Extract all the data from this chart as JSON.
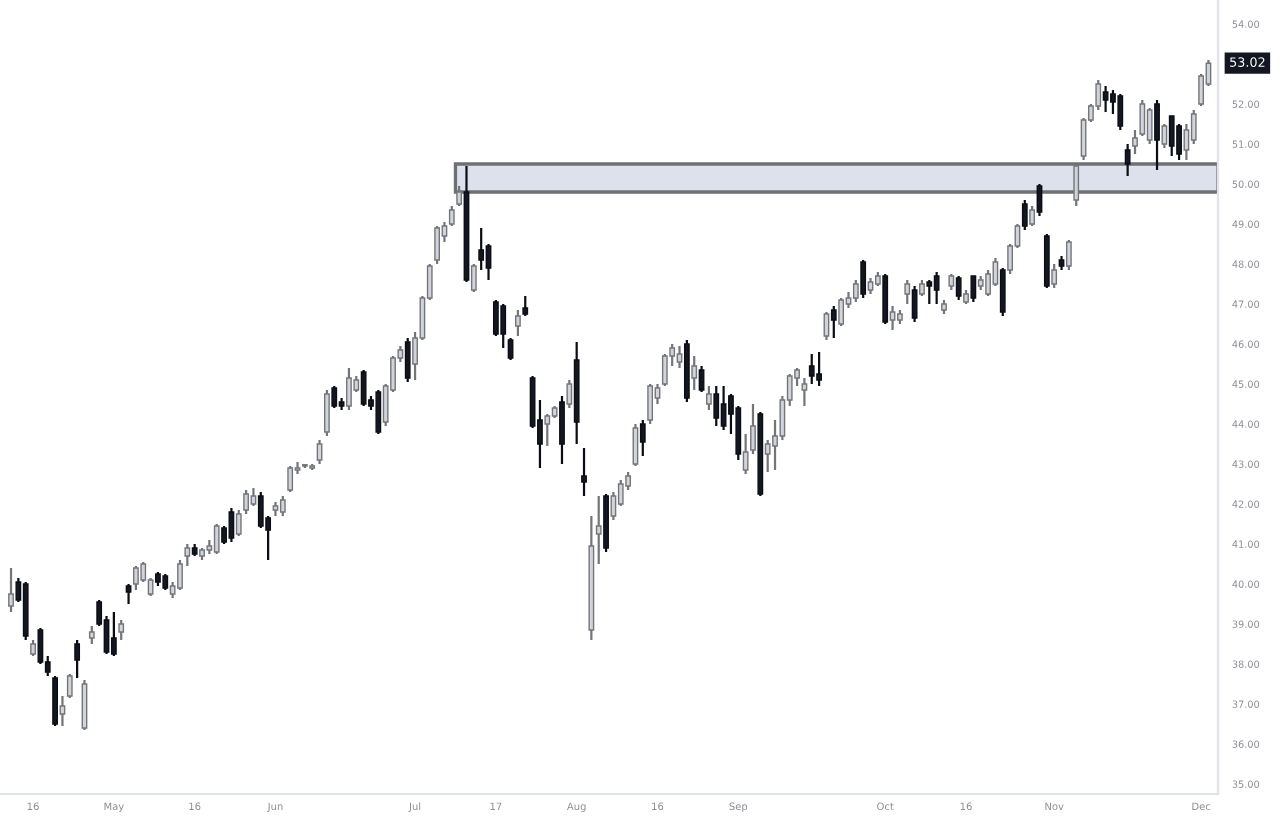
{
  "chart_data": {
    "type": "candlestick",
    "categories": [
      null,
      null,
      null,
      "16",
      null,
      null,
      null,
      null,
      null,
      null,
      null,
      null,
      null,
      null,
      "May",
      null,
      null,
      null,
      null,
      null,
      null,
      null,
      null,
      null,
      null,
      "16",
      null,
      null,
      null,
      null,
      null,
      null,
      null,
      null,
      null,
      null,
      "Jun",
      null,
      null,
      null,
      null,
      null,
      null,
      null,
      null,
      null,
      null,
      null,
      null,
      null,
      null,
      null,
      null,
      null,
      null,
      "Jul",
      null,
      null,
      null,
      null,
      null,
      null,
      null,
      null,
      null,
      null,
      "17",
      null,
      null,
      null,
      null,
      null,
      null,
      null,
      null,
      null,
      null,
      "Aug",
      null,
      null,
      null,
      null,
      null,
      null,
      null,
      null,
      null,
      null,
      "16",
      null,
      null,
      null,
      null,
      null,
      null,
      null,
      null,
      null,
      null,
      "Sep",
      null,
      null,
      null,
      null,
      null,
      null,
      null,
      null,
      null,
      null,
      null,
      null,
      null,
      null,
      null,
      null,
      null,
      null,
      null,
      "Oct",
      null,
      null,
      null,
      null,
      null,
      null,
      null,
      null,
      null,
      null,
      "16",
      null,
      null,
      null,
      null,
      null,
      null,
      null,
      null,
      null,
      null,
      null,
      "Nov",
      null,
      null,
      null,
      null,
      null,
      null,
      null,
      null,
      null,
      null,
      null,
      null,
      null,
      null,
      null,
      null,
      null,
      null,
      null,
      "Dec",
      null
    ],
    "ohlc": [
      [
        39.45,
        40.4,
        39.3,
        39.75
      ],
      [
        40.05,
        40.15,
        39.55,
        39.6
      ],
      [
        40.0,
        40.05,
        38.6,
        38.7
      ],
      [
        38.25,
        38.6,
        38.2,
        38.5
      ],
      [
        38.85,
        38.9,
        38.0,
        38.05
      ],
      [
        38.05,
        38.2,
        37.7,
        37.8
      ],
      [
        37.65,
        37.7,
        36.45,
        36.5
      ],
      [
        36.75,
        37.2,
        36.45,
        36.95
      ],
      [
        37.2,
        37.75,
        37.15,
        37.7
      ],
      [
        38.5,
        38.6,
        37.65,
        38.1
      ],
      [
        36.4,
        37.6,
        36.35,
        37.5
      ],
      [
        38.65,
        38.95,
        38.5,
        38.8
      ],
      [
        39.55,
        39.6,
        38.95,
        39.0
      ],
      [
        39.1,
        39.2,
        38.25,
        38.3
      ],
      [
        38.65,
        39.3,
        38.2,
        38.25
      ],
      [
        38.8,
        39.1,
        38.6,
        39.0
      ],
      [
        39.95,
        40.0,
        39.5,
        39.8
      ],
      [
        40.0,
        40.45,
        39.85,
        40.4
      ],
      [
        40.1,
        40.55,
        40.05,
        40.5
      ],
      [
        39.75,
        40.15,
        39.7,
        40.1
      ],
      [
        40.25,
        40.3,
        39.95,
        40.05
      ],
      [
        40.2,
        40.25,
        39.85,
        39.9
      ],
      [
        39.75,
        40.05,
        39.65,
        39.95
      ],
      [
        39.9,
        40.6,
        39.85,
        40.5
      ],
      [
        40.7,
        41.0,
        40.45,
        40.9
      ],
      [
        40.9,
        41.0,
        40.7,
        40.75
      ],
      [
        40.7,
        40.9,
        40.6,
        40.85
      ],
      [
        40.85,
        41.1,
        40.75,
        40.95
      ],
      [
        40.8,
        41.5,
        40.75,
        41.45
      ],
      [
        41.4,
        41.45,
        41.0,
        41.05
      ],
      [
        41.8,
        41.9,
        41.05,
        41.15
      ],
      [
        41.25,
        41.85,
        41.2,
        41.75
      ],
      [
        41.85,
        42.35,
        41.75,
        42.25
      ],
      [
        42.0,
        42.4,
        41.95,
        42.2
      ],
      [
        42.2,
        42.3,
        41.4,
        41.45
      ],
      [
        41.65,
        41.7,
        40.6,
        41.35
      ],
      [
        41.85,
        42.05,
        41.7,
        41.95
      ],
      [
        41.8,
        42.2,
        41.7,
        42.1
      ],
      [
        42.35,
        42.95,
        42.3,
        42.9
      ],
      [
        42.85,
        43.05,
        42.75,
        42.9
      ],
      [
        42.95,
        43.0,
        42.9,
        42.95
      ],
      [
        42.9,
        43.0,
        42.85,
        42.95
      ],
      [
        43.1,
        43.6,
        43.0,
        43.5
      ],
      [
        43.8,
        44.85,
        43.7,
        44.75
      ],
      [
        44.9,
        44.95,
        44.4,
        44.45
      ],
      [
        44.55,
        44.65,
        44.35,
        44.45
      ],
      [
        44.45,
        45.4,
        44.35,
        45.15
      ],
      [
        44.85,
        45.2,
        44.8,
        45.1
      ],
      [
        45.3,
        45.35,
        44.45,
        44.5
      ],
      [
        44.6,
        44.7,
        44.35,
        44.45
      ],
      [
        44.8,
        44.85,
        43.75,
        43.8
      ],
      [
        44.05,
        45.0,
        43.95,
        44.95
      ],
      [
        44.85,
        45.7,
        44.8,
        45.65
      ],
      [
        45.65,
        45.95,
        45.55,
        45.85
      ],
      [
        46.05,
        46.15,
        45.05,
        45.15
      ],
      [
        45.5,
        46.3,
        45.1,
        46.15
      ],
      [
        46.15,
        47.2,
        46.1,
        47.15
      ],
      [
        47.15,
        48.0,
        47.1,
        47.95
      ],
      [
        48.1,
        48.95,
        48.0,
        48.9
      ],
      [
        48.7,
        49.05,
        48.55,
        48.95
      ],
      [
        49.0,
        49.45,
        48.95,
        49.35
      ],
      [
        49.5,
        49.95,
        49.45,
        49.8
      ],
      [
        49.8,
        50.45,
        47.55,
        47.6
      ],
      [
        47.35,
        48.0,
        47.3,
        47.95
      ],
      [
        48.35,
        48.9,
        47.85,
        48.1
      ],
      [
        48.45,
        48.5,
        47.6,
        47.9
      ],
      [
        47.05,
        47.1,
        46.2,
        46.25
      ],
      [
        46.95,
        47.0,
        45.9,
        46.25
      ],
      [
        46.1,
        46.15,
        45.6,
        45.65
      ],
      [
        46.45,
        46.85,
        46.2,
        46.7
      ],
      [
        46.9,
        47.2,
        46.7,
        46.75
      ],
      [
        45.15,
        45.2,
        43.9,
        43.95
      ],
      [
        44.1,
        44.6,
        42.9,
        43.5
      ],
      [
        44.0,
        44.25,
        43.45,
        44.2
      ],
      [
        44.2,
        44.45,
        44.15,
        44.4
      ],
      [
        44.55,
        44.7,
        43.0,
        43.5
      ],
      [
        44.5,
        45.1,
        44.4,
        45.0
      ],
      [
        45.6,
        46.05,
        43.5,
        44.05
      ],
      [
        42.7,
        43.4,
        42.2,
        42.55
      ],
      [
        38.85,
        41.7,
        38.6,
        40.95
      ],
      [
        41.25,
        42.2,
        40.5,
        41.45
      ],
      [
        42.2,
        42.25,
        40.8,
        40.9
      ],
      [
        41.7,
        42.3,
        41.6,
        42.2
      ],
      [
        42.0,
        42.6,
        41.95,
        42.5
      ],
      [
        42.45,
        42.8,
        42.35,
        42.7
      ],
      [
        43.0,
        44.0,
        42.95,
        43.9
      ],
      [
        44.0,
        44.1,
        43.2,
        43.55
      ],
      [
        44.1,
        45.0,
        44.0,
        44.95
      ],
      [
        44.65,
        45.0,
        44.5,
        44.9
      ],
      [
        45.0,
        45.75,
        44.95,
        45.7
      ],
      [
        45.7,
        46.0,
        45.45,
        45.9
      ],
      [
        45.55,
        45.95,
        45.4,
        45.75
      ],
      [
        46.0,
        46.1,
        44.55,
        44.65
      ],
      [
        45.15,
        45.7,
        44.85,
        45.45
      ],
      [
        45.35,
        45.45,
        44.8,
        44.85
      ],
      [
        44.5,
        44.95,
        44.35,
        44.75
      ],
      [
        44.75,
        44.95,
        43.95,
        44.15
      ],
      [
        44.5,
        44.95,
        43.85,
        43.95
      ],
      [
        44.7,
        44.75,
        43.75,
        44.25
      ],
      [
        44.4,
        44.45,
        43.1,
        43.25
      ],
      [
        42.85,
        43.75,
        42.75,
        43.3
      ],
      [
        43.35,
        44.5,
        43.25,
        43.95
      ],
      [
        44.25,
        44.3,
        42.2,
        42.25
      ],
      [
        43.25,
        43.6,
        42.8,
        43.5
      ],
      [
        43.45,
        44.1,
        42.85,
        43.7
      ],
      [
        43.7,
        44.7,
        43.6,
        44.6
      ],
      [
        44.6,
        45.25,
        44.45,
        45.2
      ],
      [
        45.15,
        45.4,
        44.95,
        45.35
      ],
      [
        44.85,
        45.15,
        44.45,
        45.0
      ],
      [
        45.45,
        45.75,
        45.0,
        45.2
      ],
      [
        45.25,
        45.8,
        44.95,
        45.1
      ],
      [
        46.2,
        46.8,
        46.1,
        46.75
      ],
      [
        46.85,
        46.95,
        46.15,
        46.6
      ],
      [
        46.5,
        47.15,
        46.45,
        47.1
      ],
      [
        47.0,
        47.3,
        46.9,
        47.15
      ],
      [
        47.15,
        47.6,
        47.05,
        47.5
      ],
      [
        48.05,
        48.1,
        47.15,
        47.25
      ],
      [
        47.35,
        47.65,
        47.25,
        47.55
      ],
      [
        47.5,
        47.8,
        47.45,
        47.7
      ],
      [
        47.7,
        47.75,
        46.5,
        46.55
      ],
      [
        46.6,
        46.95,
        46.35,
        46.8
      ],
      [
        46.6,
        46.85,
        46.5,
        46.75
      ],
      [
        47.25,
        47.6,
        47.0,
        47.5
      ],
      [
        47.35,
        47.45,
        46.55,
        46.65
      ],
      [
        47.25,
        47.6,
        47.2,
        47.5
      ],
      [
        47.55,
        47.6,
        47.0,
        47.45
      ],
      [
        47.7,
        47.8,
        47.0,
        47.35
      ],
      [
        46.85,
        47.1,
        46.75,
        47.0
      ],
      [
        47.45,
        47.75,
        47.35,
        47.7
      ],
      [
        47.65,
        47.7,
        47.1,
        47.2
      ],
      [
        47.05,
        47.35,
        47.0,
        47.25
      ],
      [
        47.7,
        47.7,
        47.05,
        47.15
      ],
      [
        47.45,
        47.7,
        47.35,
        47.6
      ],
      [
        47.25,
        47.85,
        47.2,
        47.75
      ],
      [
        47.5,
        48.15,
        47.45,
        48.05
      ],
      [
        47.85,
        47.9,
        46.7,
        46.8
      ],
      [
        47.85,
        48.5,
        47.75,
        48.45
      ],
      [
        48.45,
        49.0,
        48.4,
        48.95
      ],
      [
        49.5,
        49.6,
        48.85,
        48.95
      ],
      [
        49.0,
        49.45,
        48.95,
        49.35
      ],
      [
        49.95,
        50.0,
        49.2,
        49.3
      ],
      [
        48.7,
        48.75,
        47.4,
        47.45
      ],
      [
        47.5,
        48.0,
        47.4,
        47.85
      ],
      [
        48.1,
        48.2,
        47.85,
        47.95
      ],
      [
        47.95,
        48.6,
        47.85,
        48.55
      ],
      [
        49.6,
        50.5,
        49.45,
        50.45
      ],
      [
        50.7,
        51.65,
        50.6,
        51.6
      ],
      [
        51.6,
        52.0,
        51.55,
        51.95
      ],
      [
        51.95,
        52.6,
        51.85,
        52.5
      ],
      [
        52.3,
        52.45,
        51.8,
        52.1
      ],
      [
        52.25,
        52.35,
        51.75,
        52.05
      ],
      [
        52.2,
        52.25,
        51.35,
        51.45
      ],
      [
        50.85,
        51.0,
        50.2,
        50.5
      ],
      [
        50.95,
        51.35,
        50.75,
        51.15
      ],
      [
        51.25,
        52.1,
        51.2,
        52.0
      ],
      [
        51.1,
        51.9,
        51.0,
        51.85
      ],
      [
        52.0,
        52.1,
        50.35,
        51.1
      ],
      [
        51.0,
        51.5,
        50.9,
        51.45
      ],
      [
        51.7,
        51.7,
        50.7,
        50.95
      ],
      [
        51.45,
        51.5,
        50.6,
        50.75
      ],
      [
        50.85,
        51.5,
        50.6,
        51.35
      ],
      [
        51.1,
        51.85,
        51.0,
        51.75
      ],
      [
        52.0,
        52.75,
        51.95,
        52.7
      ],
      [
        52.5,
        53.1,
        52.45,
        53.02
      ]
    ],
    "colors": [
      "#d1d4dc",
      "#131722",
      "#131722",
      "#d1d4dc",
      "#131722",
      "#131722",
      "#131722",
      "#d1d4dc",
      "#d1d4dc",
      "#131722",
      "#d1d4dc",
      "#d1d4dc",
      "#131722",
      "#131722",
      "#131722",
      "#d1d4dc",
      "#131722",
      "#d1d4dc",
      "#d1d4dc",
      "#d1d4dc",
      "#131722",
      "#131722",
      "#d1d4dc",
      "#d1d4dc",
      "#d1d4dc",
      "#131722",
      "#d1d4dc",
      "#d1d4dc",
      "#d1d4dc",
      "#131722",
      "#131722",
      "#d1d4dc",
      "#d1d4dc",
      "#d1d4dc",
      "#131722",
      "#131722",
      "#d1d4dc",
      "#d1d4dc",
      "#d1d4dc",
      "#d1d4dc",
      "#d1d4dc",
      "#d1d4dc",
      "#d1d4dc",
      "#d1d4dc",
      "#131722",
      "#131722",
      "#d1d4dc",
      "#d1d4dc",
      "#131722",
      "#131722",
      "#131722",
      "#d1d4dc",
      "#d1d4dc",
      "#d1d4dc",
      "#131722",
      "#d1d4dc",
      "#d1d4dc",
      "#d1d4dc",
      "#d1d4dc",
      "#d1d4dc",
      "#d1d4dc",
      "#d1d4dc",
      "#131722",
      "#d1d4dc",
      "#131722",
      "#131722",
      "#131722",
      "#131722",
      "#131722",
      "#d1d4dc",
      "#131722",
      "#131722",
      "#131722",
      "#d1d4dc",
      "#d1d4dc",
      "#131722",
      "#d1d4dc",
      "#131722",
      "#131722",
      "#d1d4dc",
      "#d1d4dc",
      "#131722",
      "#d1d4dc",
      "#d1d4dc",
      "#d1d4dc",
      "#d1d4dc",
      "#131722",
      "#d1d4dc",
      "#d1d4dc",
      "#d1d4dc",
      "#d1d4dc",
      "#d1d4dc",
      "#131722",
      "#d1d4dc",
      "#131722",
      "#d1d4dc",
      "#131722",
      "#131722",
      "#131722",
      "#131722",
      "#d1d4dc",
      "#d1d4dc",
      "#131722",
      "#d1d4dc",
      "#d1d4dc",
      "#d1d4dc",
      "#d1d4dc",
      "#d1d4dc",
      "#d1d4dc",
      "#131722",
      "#131722",
      "#d1d4dc",
      "#131722",
      "#d1d4dc",
      "#d1d4dc",
      "#d1d4dc",
      "#131722",
      "#d1d4dc",
      "#d1d4dc",
      "#131722",
      "#d1d4dc",
      "#d1d4dc",
      "#d1d4dc",
      "#131722",
      "#d1d4dc",
      "#131722",
      "#131722",
      "#d1d4dc",
      "#d1d4dc",
      "#131722",
      "#d1d4dc",
      "#131722",
      "#d1d4dc",
      "#d1d4dc",
      "#d1d4dc",
      "#131722",
      "#d1d4dc",
      "#d1d4dc",
      "#131722",
      "#d1d4dc",
      "#131722",
      "#131722",
      "#d1d4dc",
      "#131722",
      "#d1d4dc",
      "#d1d4dc",
      "#d1d4dc",
      "#d1d4dc",
      "#d1d4dc",
      "#131722",
      "#131722",
      "#131722",
      "#131722",
      "#d1d4dc",
      "#d1d4dc",
      "#d1d4dc",
      "#131722",
      "#d1d4dc",
      "#131722",
      "#131722",
      "#d1d4dc",
      "#d1d4dc",
      "#d1d4dc",
      "#d1d4dc"
    ],
    "ylim": [
      34.75,
      54.6
    ],
    "yticks": [
      {
        "value": 35,
        "label": "35.00"
      },
      {
        "value": 36,
        "label": "36.00"
      },
      {
        "value": 37,
        "label": "37.00"
      },
      {
        "value": 38,
        "label": "38.00"
      },
      {
        "value": 39,
        "label": "39.00"
      },
      {
        "value": 40,
        "label": "40.00"
      },
      {
        "value": 41,
        "label": "41.00"
      },
      {
        "value": 42,
        "label": "42.00"
      },
      {
        "value": 43,
        "label": "43.00"
      },
      {
        "value": 44,
        "label": "44.00"
      },
      {
        "value": 45,
        "label": "45.00"
      },
      {
        "value": 46,
        "label": "46.00"
      },
      {
        "value": 47,
        "label": "47.00"
      },
      {
        "value": 48,
        "label": "48.00"
      },
      {
        "value": 49,
        "label": "49.00"
      },
      {
        "value": 50,
        "label": "50.00"
      },
      {
        "value": 51,
        "label": "51.00"
      },
      {
        "value": 52,
        "label": "52.00"
      },
      {
        "value": 54,
        "label": "54.00"
      }
    ],
    "bands": [
      {
        "axis": "y",
        "from": 49.8,
        "to": 50.5,
        "color": "#dde1ec"
      }
    ],
    "annotations": [
      "53.02"
    ]
  }
}
